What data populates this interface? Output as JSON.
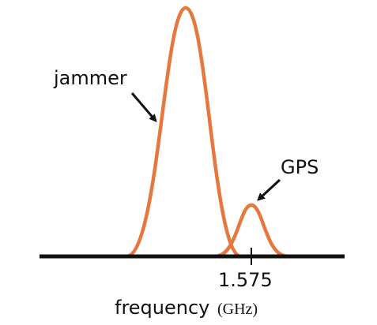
{
  "labels": {
    "jammer": "jammer",
    "gps": "GPS"
  },
  "axis": {
    "tick": "1.575",
    "label": "frequency",
    "unit": "(GHz)"
  }
}
